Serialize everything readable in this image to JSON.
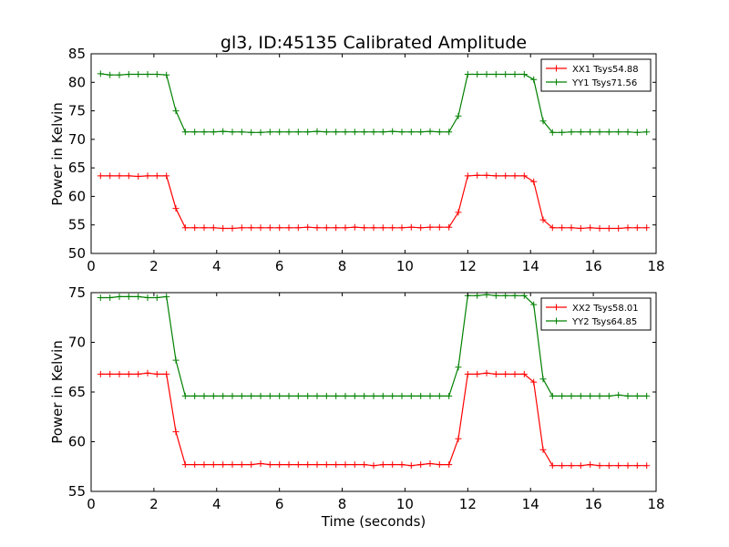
{
  "figure_title": "gl3, ID:45135 Calibrated Amplitude",
  "colors": {
    "red_series": "#ff0000",
    "green_series": "#008000",
    "axis": "#000000"
  },
  "chart_data": [
    {
      "type": "line",
      "title": "gl3, ID:45135 Calibrated Amplitude",
      "xlabel": "",
      "ylabel": "Power in Kelvin",
      "xlim": [
        0,
        18
      ],
      "ylim": [
        50,
        85
      ],
      "xticks": [
        0,
        2,
        4,
        6,
        8,
        10,
        12,
        14,
        16,
        18
      ],
      "yticks": [
        50,
        55,
        60,
        65,
        70,
        75,
        80,
        85
      ],
      "grid": false,
      "legend_position": "top-right",
      "x": [
        0.3,
        0.6,
        0.9,
        1.2,
        1.5,
        1.8,
        2.1,
        2.4,
        2.7,
        3.0,
        3.3,
        3.6,
        3.9,
        4.2,
        4.5,
        4.8,
        5.1,
        5.4,
        5.7,
        6.0,
        6.3,
        6.6,
        6.9,
        7.2,
        7.5,
        7.8,
        8.1,
        8.4,
        8.7,
        9.0,
        9.3,
        9.6,
        9.9,
        10.2,
        10.5,
        10.8,
        11.1,
        11.4,
        11.7,
        12.0,
        12.3,
        12.6,
        12.9,
        13.2,
        13.5,
        13.8,
        14.1,
        14.4,
        14.7,
        15.0,
        15.3,
        15.6,
        15.9,
        16.2,
        16.5,
        16.8,
        17.1,
        17.4,
        17.7
      ],
      "series": [
        {
          "name": "XX1 Tsys54.88",
          "color": "#ff0000",
          "values": [
            63.6,
            63.6,
            63.6,
            63.6,
            63.5,
            63.6,
            63.6,
            63.6,
            57.9,
            54.5,
            54.5,
            54.5,
            54.5,
            54.4,
            54.4,
            54.5,
            54.5,
            54.5,
            54.5,
            54.5,
            54.5,
            54.5,
            54.6,
            54.5,
            54.5,
            54.5,
            54.5,
            54.6,
            54.5,
            54.5,
            54.5,
            54.5,
            54.5,
            54.6,
            54.5,
            54.6,
            54.6,
            54.6,
            57.2,
            63.6,
            63.7,
            63.7,
            63.6,
            63.6,
            63.6,
            63.6,
            62.6,
            55.9,
            54.5,
            54.5,
            54.5,
            54.4,
            54.5,
            54.4,
            54.4,
            54.4,
            54.5,
            54.5,
            54.5
          ]
        },
        {
          "name": "YY1 Tsys71.56",
          "color": "#008000",
          "values": [
            81.5,
            81.3,
            81.3,
            81.4,
            81.4,
            81.4,
            81.4,
            81.3,
            75.0,
            71.3,
            71.3,
            71.3,
            71.3,
            71.4,
            71.3,
            71.3,
            71.2,
            71.2,
            71.3,
            71.3,
            71.3,
            71.3,
            71.3,
            71.4,
            71.3,
            71.3,
            71.3,
            71.3,
            71.3,
            71.3,
            71.3,
            71.4,
            71.3,
            71.3,
            71.3,
            71.4,
            71.3,
            71.3,
            74.1,
            81.4,
            81.4,
            81.4,
            81.4,
            81.4,
            81.4,
            81.4,
            80.5,
            73.2,
            71.2,
            71.2,
            71.3,
            71.3,
            71.3,
            71.3,
            71.3,
            71.3,
            71.3,
            71.2,
            71.3
          ]
        }
      ]
    },
    {
      "type": "line",
      "title": "",
      "xlabel": "Time (seconds)",
      "ylabel": "Power in Kelvin",
      "xlim": [
        0,
        18
      ],
      "ylim": [
        55,
        75
      ],
      "xticks": [
        0,
        2,
        4,
        6,
        8,
        10,
        12,
        14,
        16,
        18
      ],
      "yticks": [
        55,
        60,
        65,
        70,
        75
      ],
      "grid": false,
      "legend_position": "top-right",
      "x": [
        0.3,
        0.6,
        0.9,
        1.2,
        1.5,
        1.8,
        2.1,
        2.4,
        2.7,
        3.0,
        3.3,
        3.6,
        3.9,
        4.2,
        4.5,
        4.8,
        5.1,
        5.4,
        5.7,
        6.0,
        6.3,
        6.6,
        6.9,
        7.2,
        7.5,
        7.8,
        8.1,
        8.4,
        8.7,
        9.0,
        9.3,
        9.6,
        9.9,
        10.2,
        10.5,
        10.8,
        11.1,
        11.4,
        11.7,
        12.0,
        12.3,
        12.6,
        12.9,
        13.2,
        13.5,
        13.8,
        14.1,
        14.4,
        14.7,
        15.0,
        15.3,
        15.6,
        15.9,
        16.2,
        16.5,
        16.8,
        17.1,
        17.4,
        17.7
      ],
      "series": [
        {
          "name": "XX2 Tsys58.01",
          "color": "#ff0000",
          "values": [
            66.8,
            66.8,
            66.8,
            66.8,
            66.8,
            66.9,
            66.8,
            66.8,
            61.0,
            57.7,
            57.7,
            57.7,
            57.7,
            57.7,
            57.7,
            57.7,
            57.7,
            57.8,
            57.7,
            57.7,
            57.7,
            57.7,
            57.7,
            57.7,
            57.7,
            57.7,
            57.7,
            57.7,
            57.7,
            57.6,
            57.7,
            57.7,
            57.7,
            57.6,
            57.7,
            57.8,
            57.7,
            57.7,
            60.3,
            66.8,
            66.8,
            66.9,
            66.8,
            66.8,
            66.8,
            66.8,
            66.0,
            59.2,
            57.6,
            57.6,
            57.6,
            57.6,
            57.7,
            57.6,
            57.6,
            57.6,
            57.6,
            57.6,
            57.6
          ]
        },
        {
          "name": "YY2 Tsys64.85",
          "color": "#008000",
          "values": [
            74.5,
            74.5,
            74.6,
            74.6,
            74.6,
            74.5,
            74.5,
            74.6,
            68.2,
            64.6,
            64.6,
            64.6,
            64.6,
            64.6,
            64.6,
            64.6,
            64.6,
            64.6,
            64.6,
            64.6,
            64.6,
            64.6,
            64.6,
            64.6,
            64.6,
            64.6,
            64.6,
            64.6,
            64.6,
            64.6,
            64.6,
            64.6,
            64.6,
            64.6,
            64.6,
            64.6,
            64.6,
            64.6,
            67.5,
            74.7,
            74.7,
            74.8,
            74.7,
            74.7,
            74.7,
            74.7,
            73.8,
            66.3,
            64.6,
            64.6,
            64.6,
            64.6,
            64.6,
            64.6,
            64.6,
            64.7,
            64.6,
            64.6,
            64.6
          ]
        }
      ]
    }
  ]
}
